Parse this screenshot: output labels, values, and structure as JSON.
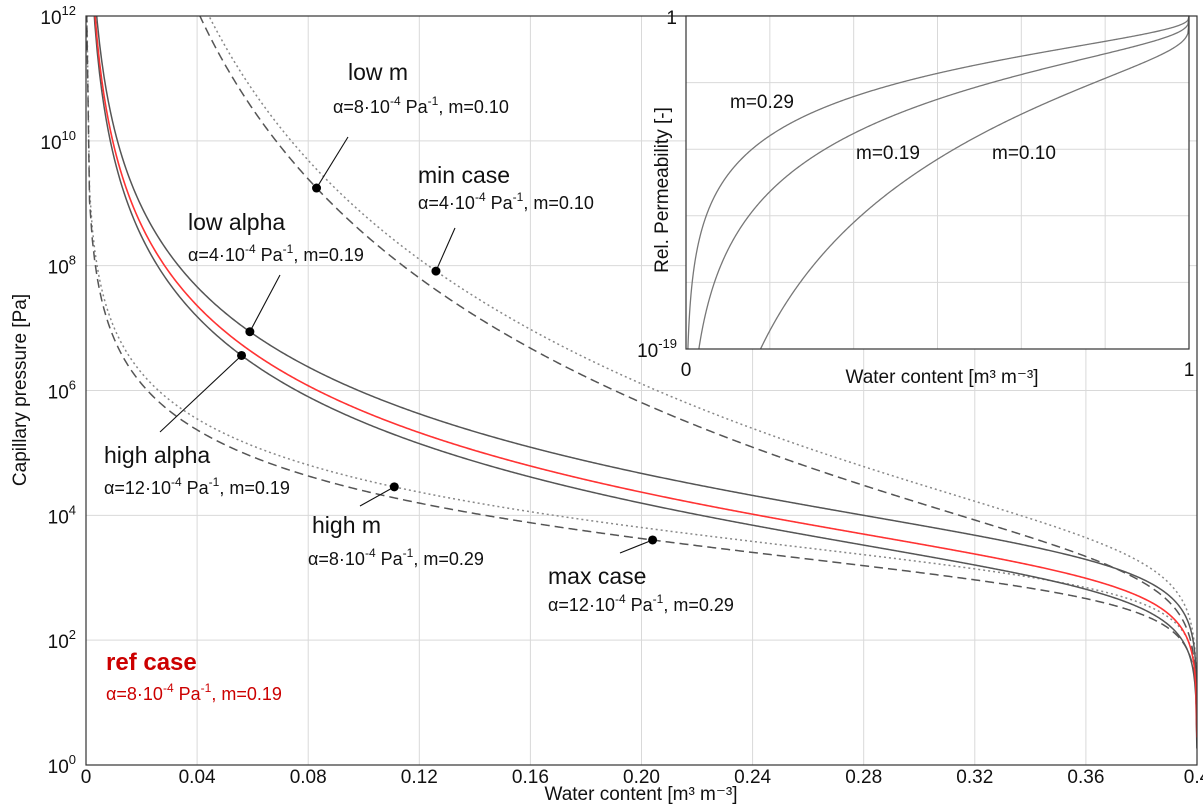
{
  "chart_data": [
    {
      "type": "line",
      "title": "",
      "xlabel": "Water content [m³ m⁻³]",
      "ylabel": "Capillary pressure [Pa]",
      "xlim": [
        0,
        0.4
      ],
      "ylim_exponent": [
        0,
        12
      ],
      "yscale": "log",
      "grid": true,
      "x_ticks": [
        "0",
        "0.04",
        "0.08",
        "0.12",
        "0.16",
        "0.20",
        "0.24",
        "0.28",
        "0.32",
        "0.36",
        "0.4"
      ],
      "y_ticks": [
        {
          "base": "10",
          "exp": "0"
        },
        {
          "base": "10",
          "exp": "2"
        },
        {
          "base": "10",
          "exp": "4"
        },
        {
          "base": "10",
          "exp": "6"
        },
        {
          "base": "10",
          "exp": "8"
        },
        {
          "base": "10",
          "exp": "10"
        },
        {
          "base": "10",
          "exp": "12"
        }
      ],
      "theta_s": 0.4,
      "series": [
        {
          "key": "ref",
          "alpha": 0.0008,
          "m": 0.19,
          "color": "#ff3333",
          "dash": "solid"
        },
        {
          "key": "low_alpha",
          "alpha": 0.0004,
          "m": 0.19,
          "color": "#555555",
          "dash": "solid"
        },
        {
          "key": "high_alpha",
          "alpha": 0.0012,
          "m": 0.19,
          "color": "#555555",
          "dash": "solid"
        },
        {
          "key": "low_m",
          "alpha": 0.0008,
          "m": 0.1,
          "color": "#555555",
          "dash": "dashed"
        },
        {
          "key": "max_case",
          "alpha": 0.0012,
          "m": 0.29,
          "color": "#555555",
          "dash": "dashed"
        },
        {
          "key": "min_case",
          "alpha": 0.0004,
          "m": 0.1,
          "color": "#888888",
          "dash": "dotted"
        },
        {
          "key": "high_m",
          "alpha": 0.0008,
          "m": 0.29,
          "color": "#888888",
          "dash": "dotted"
        }
      ],
      "annotations": [
        {
          "key": "low_m",
          "title": "low m",
          "alpha_val": "8",
          "m_val": "0.10",
          "point_x": 0.083
        },
        {
          "key": "min_case",
          "title": "min case",
          "alpha_val": "4",
          "m_val": "0.10",
          "point_x": 0.126
        },
        {
          "key": "low_alpha",
          "title": "low alpha",
          "alpha_val": "4",
          "m_val": "0.19",
          "point_x": 0.059
        },
        {
          "key": "high_alpha",
          "title": "high alpha",
          "alpha_val": "12",
          "m_val": "0.19",
          "point_x": 0.056
        },
        {
          "key": "high_m",
          "title": "high m",
          "alpha_val": "8",
          "m_val": "0.29",
          "point_x": 0.111
        },
        {
          "key": "max_case",
          "title": "max case",
          "alpha_val": "12",
          "m_val": "0.29",
          "point_x": 0.204
        }
      ],
      "ref_label": {
        "title": "ref case",
        "alpha_val": "8",
        "m_val": "0.19",
        "color": "#cc0000"
      },
      "param_text": {
        "alpha_prefix": "α=",
        "times_ten": "·10",
        "alpha_exp": "-4",
        "unit": " Pa",
        "unit_exp": "-1",
        "m_prefix": ", m="
      }
    },
    {
      "type": "line",
      "title": "",
      "xlabel": "Water content [m³ m⁻³]",
      "ylabel": "Rel. Permeability [-]",
      "xlim": [
        0,
        1
      ],
      "ylim_exponent": [
        -19,
        0
      ],
      "yscale": "log",
      "grid": true,
      "x_ticks": [
        "0",
        "1"
      ],
      "y_ticks": [
        {
          "base": "10",
          "exp": "-19"
        },
        {
          "base": "",
          "exp": "",
          "text": "1"
        }
      ],
      "series": [
        {
          "label": "m=0.29",
          "m": 0.29,
          "color": "#777777"
        },
        {
          "label": "m=0.19",
          "m": 0.19,
          "color": "#777777"
        },
        {
          "label": "m=0.10",
          "m": 0.1,
          "color": "#777777"
        }
      ]
    }
  ]
}
